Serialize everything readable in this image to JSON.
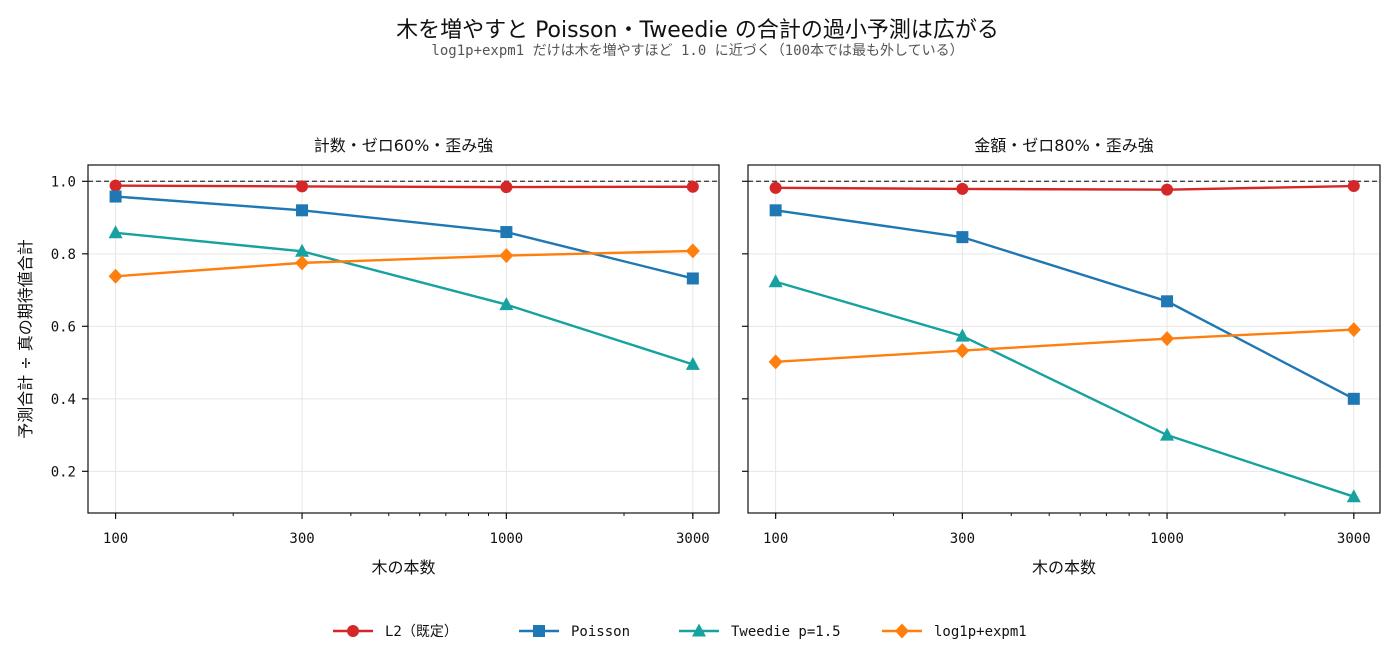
{
  "title": "木を増やすと Poisson・Tweedie の合計の過小予測は広がる",
  "subtitle": "log1p+expm1 だけは木を増やすほど 1.0 に近づく（100本では最も外している）",
  "colors": {
    "L2 (既定)": "#d62728",
    "Poisson": "#1f77b4",
    "Tweedie p=1.5": "#17a2a0",
    "log1p+expm1": "#ff7f0e"
  },
  "chart_data": [
    {
      "type": "line",
      "title": "計数・ゼロ60%・歪み強",
      "xlabel": "木の本数",
      "ylabel": "予測合計 ÷ 真の期待値合計",
      "x_scale": "log",
      "x": [
        100,
        300,
        1000,
        3000
      ],
      "x_tick_labels": [
        "100",
        "300",
        "1000",
        "3000"
      ],
      "y_ticks": [
        0.2,
        0.4,
        0.6,
        0.8,
        1.0
      ],
      "y_tick_labels": [
        "0.2",
        "0.4",
        "0.6",
        "0.8",
        "1.0"
      ],
      "ylim": [
        0.085,
        1.045
      ],
      "reference_line": 1.0,
      "grid": true,
      "series": [
        {
          "name": "L2 (既定)",
          "marker": "circle",
          "values": [
            0.988,
            0.986,
            0.984,
            0.985
          ]
        },
        {
          "name": "Poisson",
          "marker": "square",
          "values": [
            0.958,
            0.92,
            0.86,
            0.732
          ]
        },
        {
          "name": "Tweedie p=1.5",
          "marker": "triangle",
          "values": [
            0.858,
            0.807,
            0.66,
            0.495
          ]
        },
        {
          "name": "log1p+expm1",
          "marker": "diamond",
          "values": [
            0.738,
            0.775,
            0.795,
            0.808
          ]
        }
      ]
    },
    {
      "type": "line",
      "title": "金額・ゼロ80%・歪み強",
      "xlabel": "木の本数",
      "ylabel": "",
      "x_scale": "log",
      "x": [
        100,
        300,
        1000,
        3000
      ],
      "x_tick_labels": [
        "100",
        "300",
        "1000",
        "3000"
      ],
      "y_ticks": [
        0.2,
        0.4,
        0.6,
        0.8,
        1.0
      ],
      "y_tick_labels": [],
      "ylim": [
        0.085,
        1.045
      ],
      "reference_line": 1.0,
      "grid": true,
      "series": [
        {
          "name": "L2 (既定)",
          "marker": "circle",
          "values": [
            0.982,
            0.979,
            0.977,
            0.987
          ]
        },
        {
          "name": "Poisson",
          "marker": "square",
          "values": [
            0.92,
            0.846,
            0.669,
            0.4
          ]
        },
        {
          "name": "Tweedie p=1.5",
          "marker": "triangle",
          "values": [
            0.723,
            0.573,
            0.3,
            0.13
          ]
        },
        {
          "name": "log1p+expm1",
          "marker": "diamond",
          "values": [
            0.502,
            0.533,
            0.566,
            0.591
          ]
        }
      ]
    }
  ],
  "legend": {
    "placement": "bottom-center",
    "entries": [
      {
        "label": "L2（既定）",
        "series": "L2 (既定)",
        "marker": "circle"
      },
      {
        "label": "Poisson",
        "series": "Poisson",
        "marker": "square"
      },
      {
        "label": "Tweedie p=1.5",
        "series": "Tweedie p=1.5",
        "marker": "triangle"
      },
      {
        "label": "log1p+expm1",
        "series": "log1p+expm1",
        "marker": "diamond"
      }
    ]
  }
}
